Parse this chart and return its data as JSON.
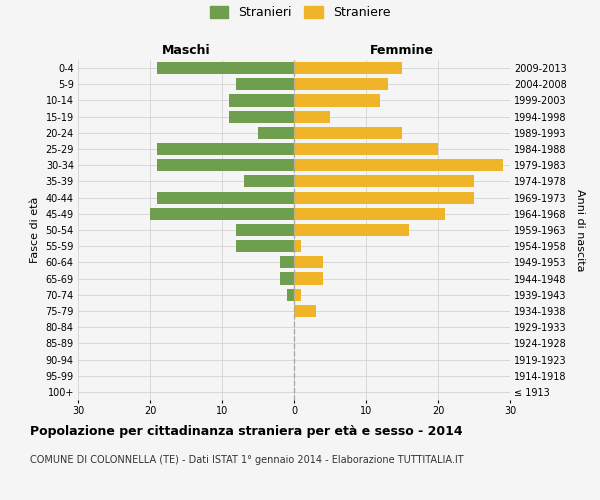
{
  "age_groups": [
    "100+",
    "95-99",
    "90-94",
    "85-89",
    "80-84",
    "75-79",
    "70-74",
    "65-69",
    "60-64",
    "55-59",
    "50-54",
    "45-49",
    "40-44",
    "35-39",
    "30-34",
    "25-29",
    "20-24",
    "15-19",
    "10-14",
    "5-9",
    "0-4"
  ],
  "birth_years": [
    "≤ 1913",
    "1914-1918",
    "1919-1923",
    "1924-1928",
    "1929-1933",
    "1934-1938",
    "1939-1943",
    "1944-1948",
    "1949-1953",
    "1954-1958",
    "1959-1963",
    "1964-1968",
    "1969-1973",
    "1974-1978",
    "1979-1983",
    "1984-1988",
    "1989-1993",
    "1994-1998",
    "1999-2003",
    "2004-2008",
    "2009-2013"
  ],
  "maschi": [
    0,
    0,
    0,
    0,
    0,
    0,
    1,
    2,
    2,
    8,
    8,
    20,
    19,
    7,
    19,
    19,
    5,
    9,
    9,
    8,
    19
  ],
  "femmine": [
    0,
    0,
    0,
    0,
    0,
    3,
    1,
    4,
    4,
    1,
    16,
    21,
    25,
    25,
    29,
    20,
    15,
    5,
    12,
    13,
    15
  ],
  "maschi_color": "#6e9e4e",
  "femmine_color": "#f0b429",
  "background_color": "#f5f5f5",
  "title": "Popolazione per cittadinanza straniera per età e sesso - 2014",
  "subtitle": "COMUNE DI COLONNELLA (TE) - Dati ISTAT 1° gennaio 2014 - Elaborazione TUTTITALIA.IT",
  "xlabel_left": "Maschi",
  "xlabel_right": "Femmine",
  "ylabel_left": "Fasce di età",
  "ylabel_right": "Anni di nascita",
  "legend_maschi": "Stranieri",
  "legend_femmine": "Straniere",
  "xlim": 30,
  "grid_color": "#cccccc"
}
